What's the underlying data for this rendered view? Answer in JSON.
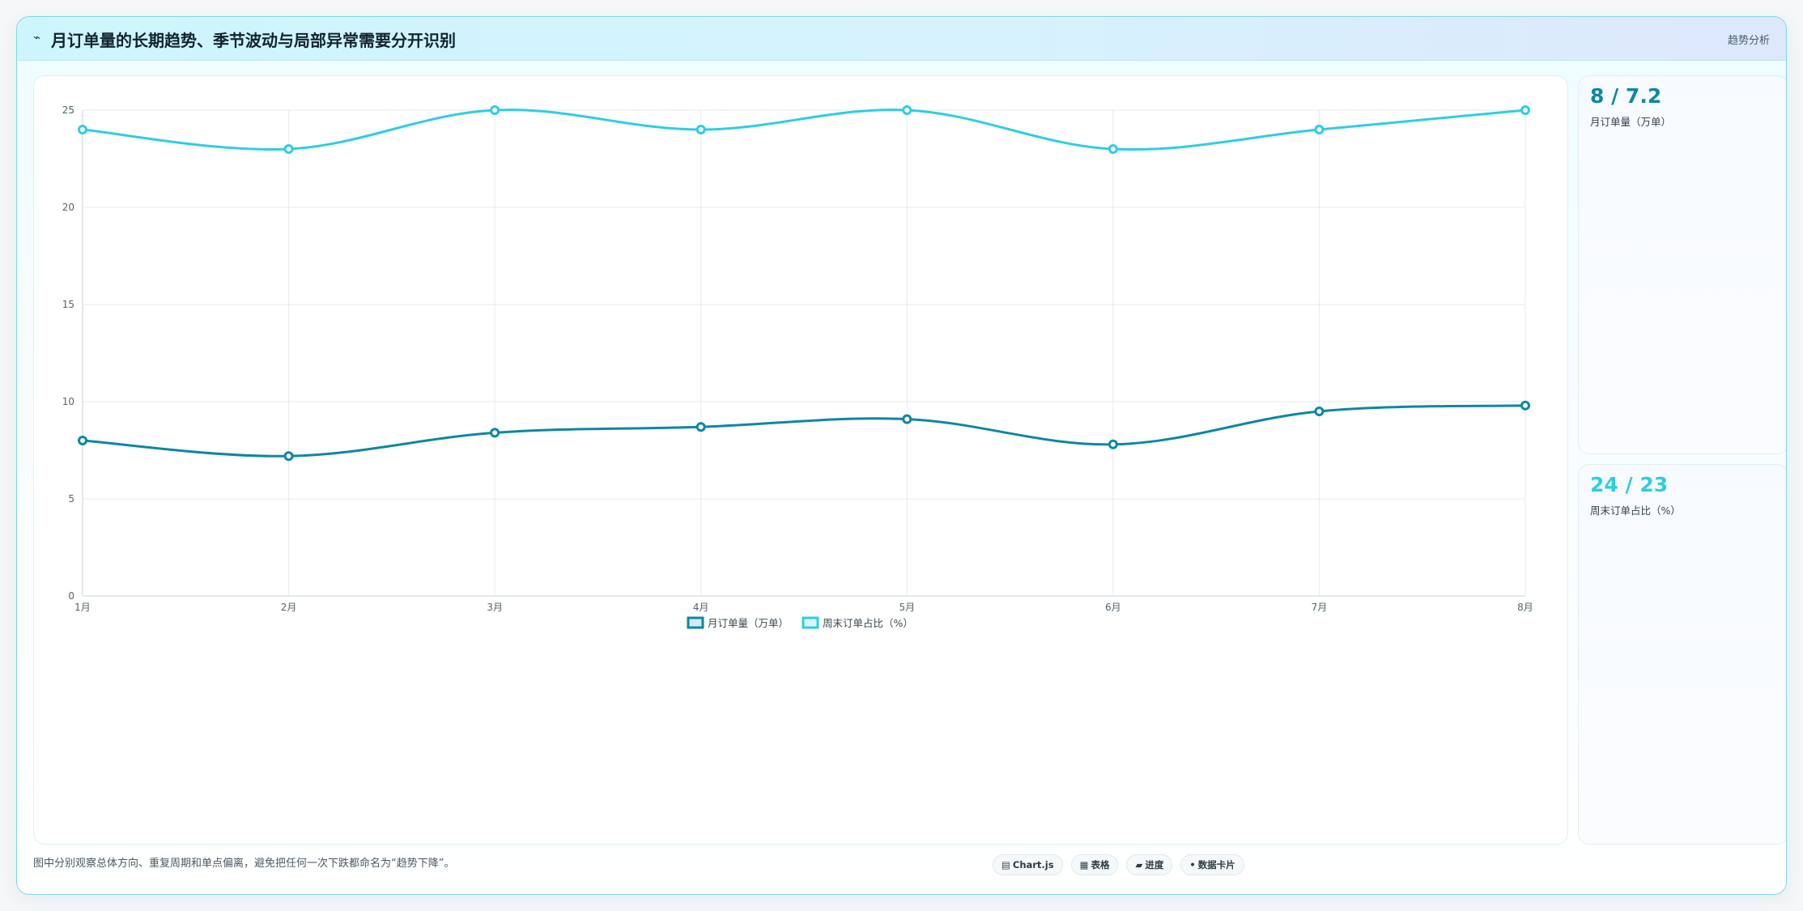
{
  "header": {
    "icon": "trend-line-icon",
    "icon_glyph": "⌁",
    "title": "月订单量的长期趋势、季节波动与局部异常需要分开识别",
    "tag": "趋势分析"
  },
  "stats": [
    {
      "value": "8 / 7.2",
      "label": "月订单量（万单）",
      "color": "#0e87a3"
    },
    {
      "value": "24 / 23",
      "label": "周末订单占比（%）",
      "color": "#2fcde3"
    }
  ],
  "footer": {
    "note": "图中分别观察总体方向、重复周期和单点偏离，避免把任何一次下跌都命名为“趋势下降”。",
    "pills": [
      {
        "icon": "chart-icon",
        "glyph": "▤",
        "label": "Chart.js"
      },
      {
        "icon": "table-icon",
        "glyph": "▦",
        "label": "表格"
      },
      {
        "icon": "progress-icon",
        "glyph": "▰",
        "label": "进度"
      },
      {
        "icon": "card-icon",
        "glyph": "•",
        "label": "数据卡片"
      }
    ]
  },
  "chart_data": {
    "type": "line",
    "categories": [
      "1月",
      "2月",
      "3月",
      "4月",
      "5月",
      "6月",
      "7月",
      "8月"
    ],
    "series": [
      {
        "name": "月订单量（万单）",
        "color": "#0e87a3",
        "values": [
          8.0,
          7.2,
          8.4,
          8.7,
          9.1,
          7.8,
          9.5,
          9.8
        ]
      },
      {
        "name": "周末订单占比（%）",
        "color": "#2fcde3",
        "values": [
          24,
          23,
          25,
          24,
          25,
          23,
          24,
          25
        ]
      }
    ],
    "ylim": [
      0,
      25
    ],
    "yticks": [
      0,
      5,
      10,
      15,
      20,
      25
    ],
    "grid": true,
    "legend": "bottom-center"
  }
}
